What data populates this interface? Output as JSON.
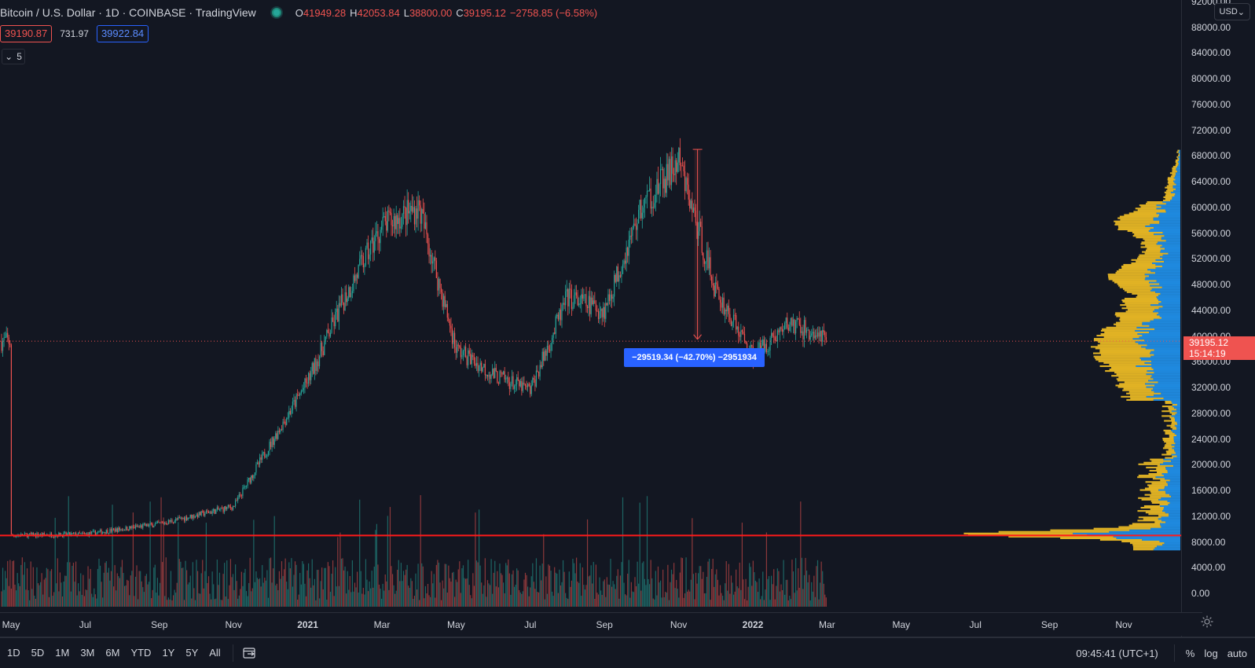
{
  "header": {
    "title": "Bitcoin / U.S. Dollar · 1D · COINBASE · TradingView",
    "ohlc": [
      {
        "key": "O",
        "value": "41949.28"
      },
      {
        "key": "H",
        "value": "42053.84"
      },
      {
        "key": "L",
        "value": "38800.00"
      },
      {
        "key": "C",
        "value": "39195.12"
      }
    ],
    "change": "−2758.85 (−6.58%)"
  },
  "quote": {
    "sell": "39190.87",
    "spread": "731.97",
    "buy": "39922.84"
  },
  "indicators_collapse": {
    "count": "5"
  },
  "measure_label": "−29519.34 (−42.70%) −2951934",
  "price_axis": {
    "currency": "USD",
    "last_price": "39195.12",
    "countdown": "15:14:19",
    "ticks": [
      "92000.00",
      "88000.00",
      "84000.00",
      "80000.00",
      "76000.00",
      "72000.00",
      "68000.00",
      "64000.00",
      "60000.00",
      "56000.00",
      "52000.00",
      "48000.00",
      "44000.00",
      "40000.00",
      "36000.00",
      "32000.00",
      "28000.00",
      "24000.00",
      "20000.00",
      "16000.00",
      "12000.00",
      "8000.00",
      "4000.00",
      "0.00"
    ]
  },
  "time_axis": {
    "labels": [
      {
        "text": "May",
        "bold": false
      },
      {
        "text": "Jul",
        "bold": false
      },
      {
        "text": "Sep",
        "bold": false
      },
      {
        "text": "Nov",
        "bold": false
      },
      {
        "text": "2021",
        "bold": true
      },
      {
        "text": "Mar",
        "bold": false
      },
      {
        "text": "May",
        "bold": false
      },
      {
        "text": "Jul",
        "bold": false
      },
      {
        "text": "Sep",
        "bold": false
      },
      {
        "text": "Nov",
        "bold": false
      },
      {
        "text": "2022",
        "bold": true
      },
      {
        "text": "Mar",
        "bold": false
      },
      {
        "text": "May",
        "bold": false
      },
      {
        "text": "Jul",
        "bold": false
      },
      {
        "text": "Sep",
        "bold": false
      },
      {
        "text": "Nov",
        "bold": false
      }
    ]
  },
  "bottom_bar": {
    "ranges": [
      "1D",
      "5D",
      "1M",
      "3M",
      "6M",
      "YTD",
      "1Y",
      "5Y",
      "All"
    ],
    "clock": "09:45:41 (UTC+1)",
    "percent": "%",
    "log": "log",
    "auto": "auto"
  },
  "colors": {
    "up": "#26a69a",
    "down": "#ef5350",
    "accent": "#2962ff",
    "volume_profile_up": "#2196f3",
    "volume_profile_down": "#f7c325"
  },
  "chart_data": {
    "type": "candlestick",
    "series": [
      {
        "name": "BTCUSD",
        "x_from": "2020-05",
        "x_to": "2022-03",
        "anchors": [
          [
            "2020-05",
            9000
          ],
          [
            "2020-07",
            9200
          ],
          [
            "2020-09",
            10800
          ],
          [
            "2020-11",
            13500
          ],
          [
            "2021-01",
            33000
          ],
          [
            "2021-02",
            46000
          ],
          [
            "2021-03",
            57000
          ],
          [
            "2021-04",
            60000
          ],
          [
            "2021-05",
            38000
          ],
          [
            "2021-06",
            34000
          ],
          [
            "2021-07",
            31500
          ],
          [
            "2021-08",
            46000
          ],
          [
            "2021-09",
            44000
          ],
          [
            "2021-10",
            60000
          ],
          [
            "2021-11",
            67000
          ],
          [
            "2021-12",
            47000
          ],
          [
            "2022-01",
            37000
          ],
          [
            "2022-02",
            42000
          ],
          [
            "2022-03",
            39195.12
          ]
        ]
      }
    ],
    "key_levels": {
      "measure_high": 69000,
      "measure_low": 39480,
      "horizontal_level": 9000
    },
    "ylim": [
      0,
      92000
    ],
    "log_scale": false,
    "grid": false
  }
}
